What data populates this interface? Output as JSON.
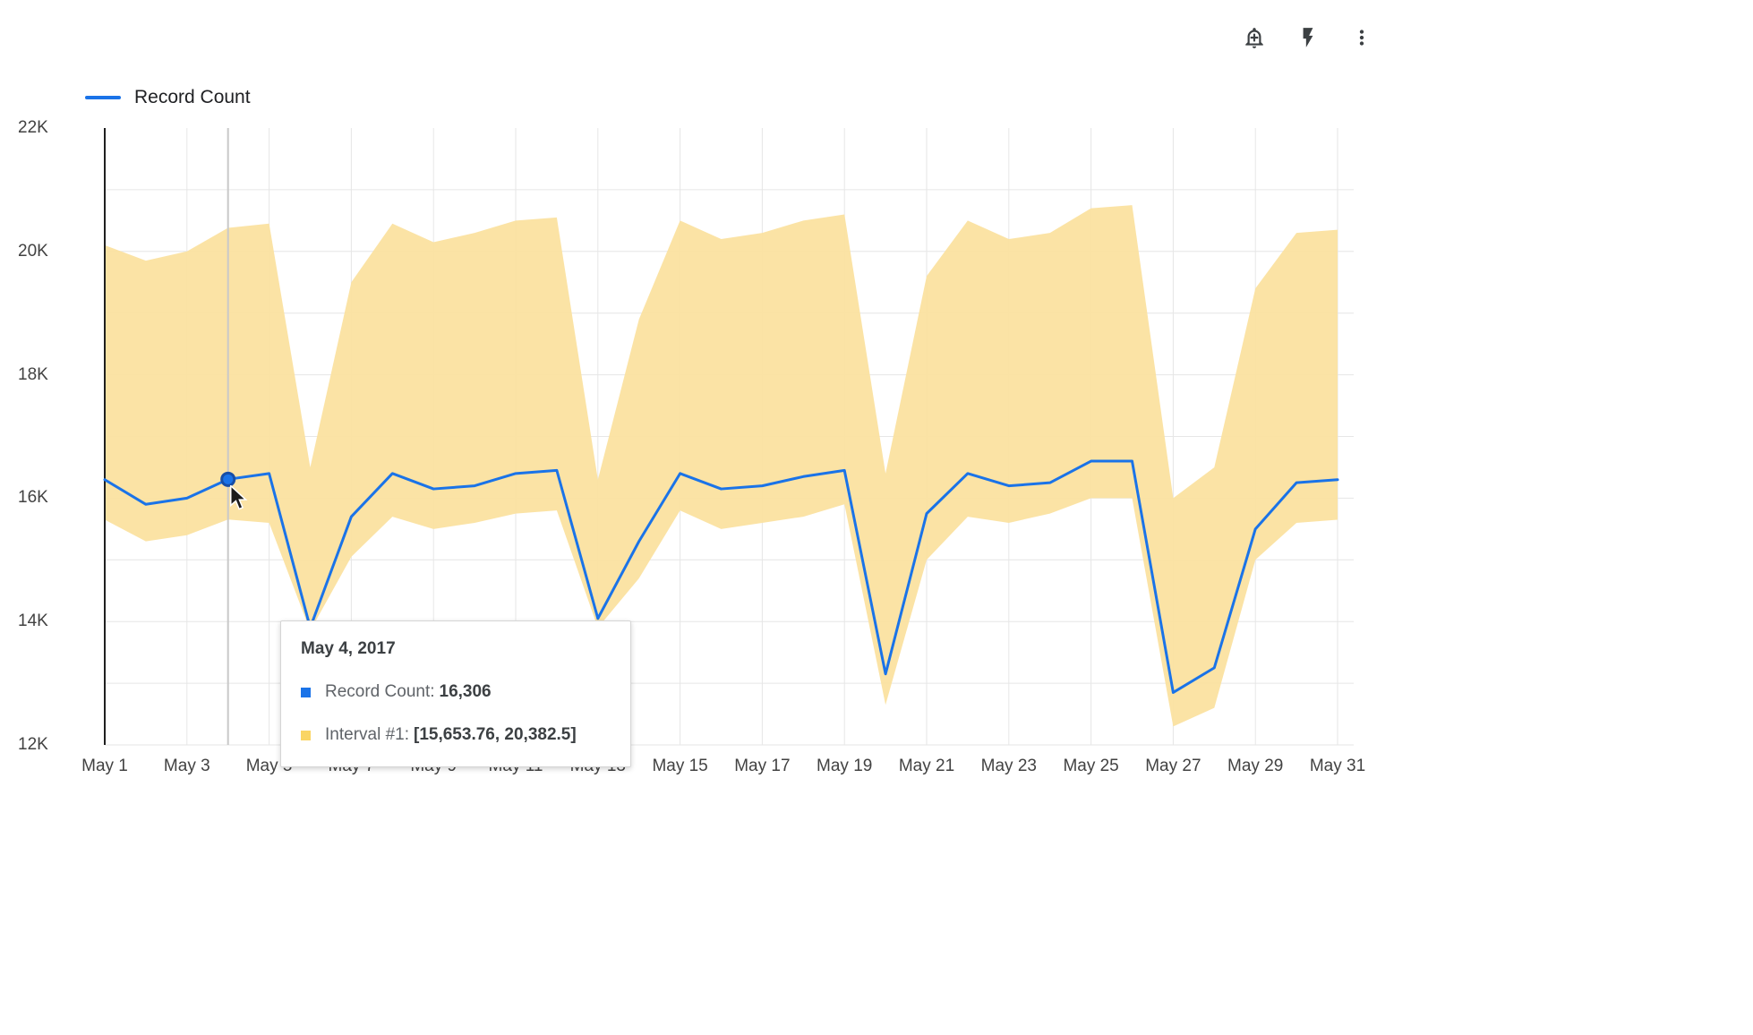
{
  "toolbar": {
    "icons": [
      "add-alert",
      "flash",
      "more-vert"
    ],
    "icon_color": "#3c4043"
  },
  "legend": {
    "label": "Record Count",
    "color": "#1a73e8"
  },
  "tooltip": {
    "title": "May 4, 2017",
    "rows": [
      {
        "swatch": "#1a73e8",
        "label": "Record Count:",
        "value": "16,306"
      },
      {
        "swatch": "#fad564",
        "label": "Interval #1:",
        "value": "[15,653.76, 20,382.5]"
      }
    ]
  },
  "chart_data": {
    "type": "line",
    "title": "",
    "xlabel": "",
    "ylabel": "",
    "x_unit": "day of May 2017",
    "x": [
      1,
      2,
      3,
      4,
      5,
      6,
      7,
      8,
      9,
      10,
      11,
      12,
      13,
      14,
      15,
      16,
      17,
      18,
      19,
      20,
      21,
      22,
      23,
      24,
      25,
      26,
      27,
      28,
      29,
      30,
      31
    ],
    "x_tick_labels": [
      "May 1",
      "May 3",
      "May 5",
      "May 7",
      "May 9",
      "May 11",
      "May 13",
      "May 15",
      "May 17",
      "May 19",
      "May 21",
      "May 23",
      "May 25",
      "May 27",
      "May 29",
      "May 31"
    ],
    "ylim": [
      12000,
      22000
    ],
    "y_tick_labels": [
      "12K",
      "14K",
      "16K",
      "18K",
      "20K",
      "22K"
    ],
    "grid": true,
    "legend_position": "top-left",
    "series": [
      {
        "name": "Record Count",
        "type": "line",
        "color": "#1a73e8",
        "values": [
          16300,
          15900,
          16000,
          16306,
          16400,
          13900,
          15700,
          16400,
          16150,
          16200,
          16400,
          16450,
          14050,
          15300,
          16400,
          16150,
          16200,
          16350,
          16450,
          13150,
          15750,
          16400,
          16200,
          16250,
          16600,
          16600,
          12850,
          13250,
          15500,
          16250,
          16300
        ]
      },
      {
        "name": "Interval #1",
        "type": "band",
        "color": "#fbe1a0",
        "lower": [
          15650,
          15300,
          15400,
          15653.76,
          15600,
          13850,
          15050,
          15700,
          15500,
          15600,
          15750,
          15800,
          13900,
          14700,
          15800,
          15500,
          15600,
          15700,
          15900,
          12650,
          15000,
          15700,
          15600,
          15750,
          16000,
          16000,
          12300,
          12600,
          15000,
          15600,
          15650
        ],
        "upper": [
          20100,
          19850,
          20000,
          20382.5,
          20450,
          16500,
          19500,
          20450,
          20150,
          20300,
          20500,
          20550,
          16300,
          18900,
          20500,
          20200,
          20300,
          20500,
          20600,
          16400,
          19600,
          20500,
          20200,
          20300,
          20700,
          20750,
          16000,
          16500,
          19400,
          20300,
          20350
        ]
      }
    ],
    "highlight_point": {
      "x": 4,
      "date_label": "May 4, 2017",
      "value": 16306
    }
  }
}
